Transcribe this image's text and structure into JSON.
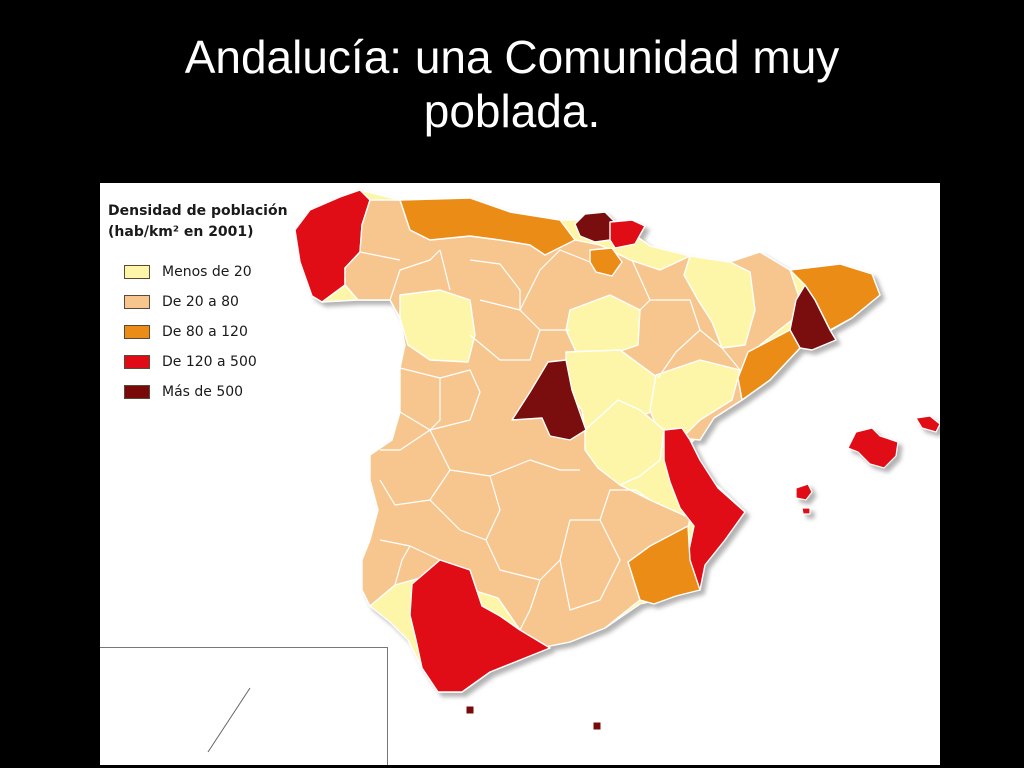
{
  "slide": {
    "title_line1": "Andalucía: una Comunidad muy",
    "title_line2": "poblada."
  },
  "legend": {
    "title_line1": "Densidad de población",
    "title_line2": "(hab/km² en 2001)",
    "items": [
      {
        "label": "Menos de 20",
        "color": "#fdf6a8"
      },
      {
        "label": "De 20 a 80",
        "color": "#f6c68e"
      },
      {
        "label": "De 80 a 120",
        "color": "#ea8c16"
      },
      {
        "label": "De 120 a 500",
        "color": "#e10a17"
      },
      {
        "label": "Más de 500",
        "color": "#7a0a0a"
      }
    ]
  },
  "colors": {
    "background": "#000000",
    "title": "#ffffff",
    "panel": "#ffffff",
    "border": "#ffffff",
    "shadow": "#b3b3b3"
  }
}
